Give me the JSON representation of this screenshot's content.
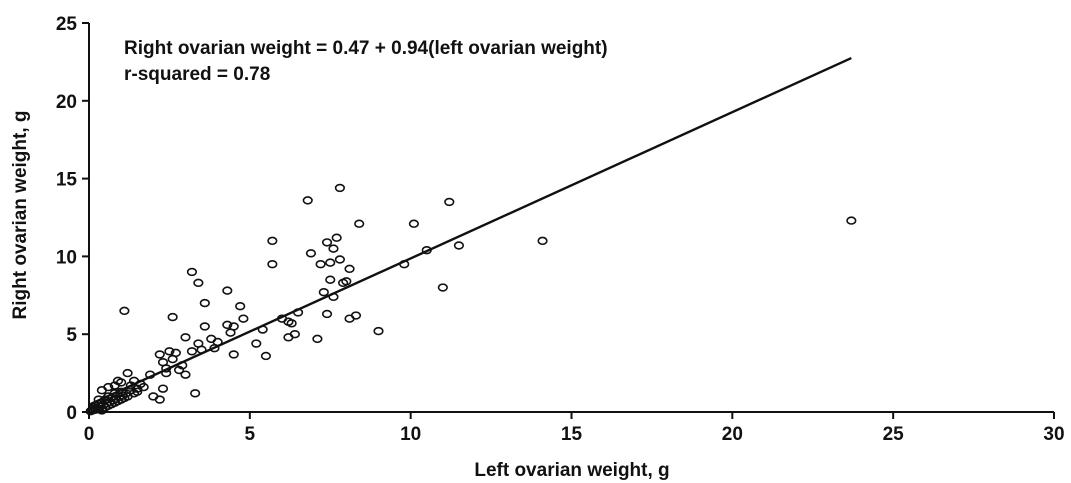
{
  "chart_data": {
    "type": "scatter",
    "xlabel": "Left ovarian weight, g",
    "ylabel": "Right ovarian weight, g",
    "xlim": [
      0,
      30
    ],
    "ylim": [
      0,
      25
    ],
    "x_ticks": [
      "0",
      "5",
      "10",
      "15",
      "20",
      "25",
      "30"
    ],
    "y_ticks": [
      "0",
      "5",
      "10",
      "15",
      "20",
      "25"
    ],
    "grid": false,
    "annotations": [
      "Right ovarian weight = 0.47 + 0.94(left ovarian weight)",
      "r-squared = 0.78"
    ],
    "fit_line": {
      "intercept": 0.47,
      "slope": 0.94,
      "x_range": [
        0,
        23.7
      ]
    },
    "points": [
      [
        0.05,
        0.05
      ],
      [
        0.1,
        0.1
      ],
      [
        0.12,
        0.2
      ],
      [
        0.15,
        0.3
      ],
      [
        0.2,
        0.15
      ],
      [
        0.2,
        0.4
      ],
      [
        0.25,
        0.25
      ],
      [
        0.3,
        0.5
      ],
      [
        0.3,
        0.2
      ],
      [
        0.35,
        0.35
      ],
      [
        0.4,
        0.6
      ],
      [
        0.4,
        0.1
      ],
      [
        0.45,
        0.45
      ],
      [
        0.5,
        0.3
      ],
      [
        0.5,
        0.8
      ],
      [
        0.55,
        0.55
      ],
      [
        0.6,
        0.4
      ],
      [
        0.6,
        1.0
      ],
      [
        0.65,
        0.65
      ],
      [
        0.7,
        0.5
      ],
      [
        0.7,
        0.9
      ],
      [
        0.75,
        0.75
      ],
      [
        0.8,
        0.6
      ],
      [
        0.8,
        1.2
      ],
      [
        0.85,
        0.85
      ],
      [
        0.9,
        0.7
      ],
      [
        0.95,
        1.0
      ],
      [
        1.0,
        0.8
      ],
      [
        1.0,
        1.3
      ],
      [
        1.05,
        1.05
      ],
      [
        1.1,
        0.9
      ],
      [
        1.15,
        1.2
      ],
      [
        1.2,
        1.0
      ],
      [
        1.3,
        1.4
      ],
      [
        1.4,
        1.2
      ],
      [
        1.5,
        1.5
      ],
      [
        1.6,
        1.8
      ],
      [
        1.4,
        2.0
      ],
      [
        0.9,
        2.0
      ],
      [
        0.6,
        1.6
      ],
      [
        0.4,
        1.4
      ],
      [
        0.3,
        0.8
      ],
      [
        1.1,
        6.5
      ],
      [
        1.2,
        2.5
      ],
      [
        1.0,
        1.9
      ],
      [
        0.8,
        1.7
      ],
      [
        1.5,
        1.3
      ],
      [
        1.3,
        1.7
      ],
      [
        1.7,
        1.6
      ],
      [
        1.9,
        2.4
      ],
      [
        2.0,
        1.0
      ],
      [
        2.2,
        0.8
      ],
      [
        2.3,
        1.5
      ],
      [
        2.4,
        2.5
      ],
      [
        2.2,
        3.7
      ],
      [
        2.3,
        3.2
      ],
      [
        2.4,
        2.8
      ],
      [
        2.5,
        3.9
      ],
      [
        2.6,
        3.4
      ],
      [
        2.7,
        3.8
      ],
      [
        2.6,
        6.1
      ],
      [
        2.8,
        2.7
      ],
      [
        2.9,
        3.0
      ],
      [
        3.0,
        2.4
      ],
      [
        3.0,
        4.8
      ],
      [
        3.2,
        3.9
      ],
      [
        3.2,
        9.0
      ],
      [
        3.3,
        1.2
      ],
      [
        3.4,
        4.4
      ],
      [
        3.4,
        8.3
      ],
      [
        3.5,
        4.0
      ],
      [
        3.6,
        5.5
      ],
      [
        3.6,
        7.0
      ],
      [
        3.8,
        4.7
      ],
      [
        3.9,
        4.1
      ],
      [
        4.0,
        4.5
      ],
      [
        4.3,
        7.8
      ],
      [
        4.3,
        5.6
      ],
      [
        4.4,
        5.1
      ],
      [
        4.5,
        5.5
      ],
      [
        4.5,
        3.7
      ],
      [
        4.7,
        6.8
      ],
      [
        4.8,
        6.0
      ],
      [
        5.2,
        4.4
      ],
      [
        5.4,
        5.3
      ],
      [
        5.5,
        3.6
      ],
      [
        5.7,
        9.5
      ],
      [
        5.7,
        11.0
      ],
      [
        6.0,
        6.0
      ],
      [
        6.2,
        5.8
      ],
      [
        6.2,
        4.8
      ],
      [
        6.3,
        5.7
      ],
      [
        6.4,
        5.0
      ],
      [
        6.5,
        6.4
      ],
      [
        6.8,
        13.6
      ],
      [
        6.9,
        10.2
      ],
      [
        7.1,
        4.7
      ],
      [
        7.2,
        9.5
      ],
      [
        7.3,
        7.7
      ],
      [
        7.4,
        10.9
      ],
      [
        7.4,
        6.3
      ],
      [
        7.5,
        8.5
      ],
      [
        7.5,
        9.6
      ],
      [
        7.6,
        10.5
      ],
      [
        7.6,
        7.4
      ],
      [
        7.7,
        11.2
      ],
      [
        7.8,
        14.4
      ],
      [
        7.8,
        9.8
      ],
      [
        7.9,
        8.3
      ],
      [
        8.0,
        8.4
      ],
      [
        8.1,
        6.0
      ],
      [
        8.1,
        9.2
      ],
      [
        8.3,
        6.2
      ],
      [
        8.4,
        12.1
      ],
      [
        9.0,
        5.2
      ],
      [
        9.8,
        9.5
      ],
      [
        10.1,
        12.1
      ],
      [
        10.5,
        10.4
      ],
      [
        11.0,
        8.0
      ],
      [
        11.2,
        13.5
      ],
      [
        11.5,
        10.7
      ],
      [
        14.1,
        11.0
      ],
      [
        23.7,
        12.3
      ]
    ]
  }
}
